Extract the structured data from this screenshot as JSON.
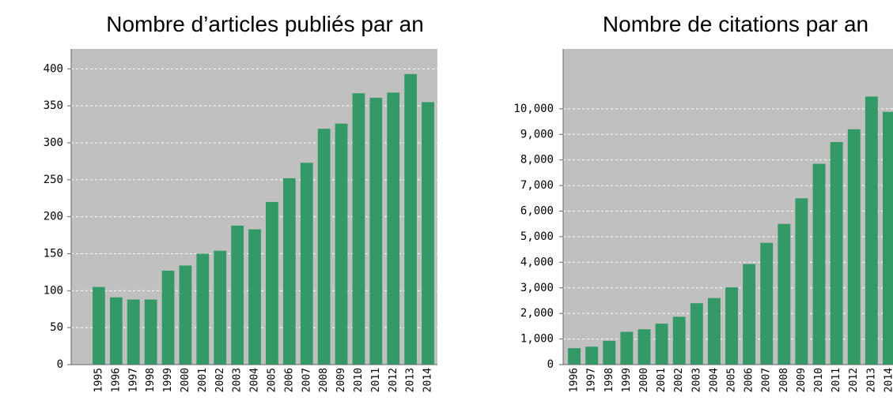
{
  "chart_data": [
    {
      "type": "bar",
      "title": "Nombre d’articles publiés par an",
      "categories": [
        "1995",
        "1996",
        "1997",
        "1998",
        "1999",
        "2000",
        "2001",
        "2002",
        "2003",
        "2004",
        "2005",
        "2006",
        "2007",
        "2008",
        "2009",
        "2010",
        "2011",
        "2012",
        "2013",
        "2014"
      ],
      "values": [
        105,
        91,
        88,
        88,
        127,
        134,
        150,
        154,
        188,
        183,
        220,
        252,
        273,
        319,
        326,
        367,
        361,
        368,
        393,
        355
      ],
      "color": "#339966",
      "ylim": [
        0,
        427
      ],
      "yticks": [
        0,
        50,
        100,
        150,
        200,
        250,
        300,
        350,
        400
      ],
      "grid": true
    },
    {
      "type": "bar",
      "title": "Nombre de citations par an",
      "categories": [
        "1996",
        "1997",
        "1998",
        "1999",
        "2000",
        "2001",
        "2002",
        "2003",
        "2004",
        "2005",
        "2006",
        "2007",
        "2008",
        "2009",
        "2010",
        "2011",
        "2012",
        "2013",
        "2014"
      ],
      "values": [
        640,
        700,
        930,
        1280,
        1380,
        1600,
        1870,
        2400,
        2600,
        3020,
        3930,
        4760,
        5500,
        6500,
        7850,
        8700,
        9200,
        10480,
        9880
      ],
      "color": "#339966",
      "ylim": [
        0,
        12340
      ],
      "yticks": [
        0,
        {
          "value": 1000,
          "label": "1,000"
        },
        {
          "value": 2000,
          "label": "2,000"
        },
        {
          "value": 3000,
          "label": "3,000"
        },
        {
          "value": 4000,
          "label": "4,000"
        },
        {
          "value": 5000,
          "label": "5,000"
        },
        {
          "value": 6000,
          "label": "6,000"
        },
        {
          "value": 7000,
          "label": "7,000"
        },
        {
          "value": 8000,
          "label": "8,000"
        },
        {
          "value": 9000,
          "label": "9,000"
        },
        {
          "value": 10000,
          "label": "10,000"
        }
      ],
      "grid": true
    }
  ]
}
